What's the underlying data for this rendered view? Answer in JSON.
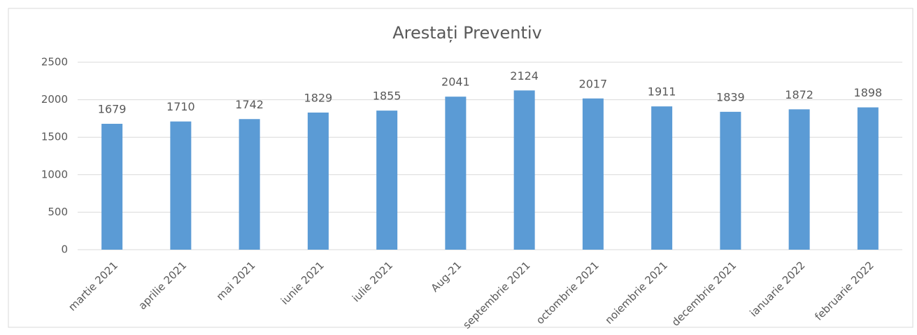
{
  "chart_data": {
    "type": "bar",
    "title": "Arestați Preventiv",
    "categories": [
      "martie 2021",
      "aprilie 2021",
      "mai 2021",
      "iunie 2021",
      "iulie 2021",
      "Aug-21",
      "septembrie 2021",
      "octombrie 2021",
      "noiembrie 2021",
      "decembrie 2021",
      "ianuarie 2022",
      "februarie 2022"
    ],
    "values": [
      1679,
      1710,
      1742,
      1829,
      1855,
      2041,
      2124,
      2017,
      1911,
      1839,
      1872,
      1898
    ],
    "color": "#5b9bd5",
    "ylim": [
      0,
      2500
    ],
    "yticks": [
      0,
      500,
      1000,
      1500,
      2000,
      2500
    ],
    "grid": true
  }
}
